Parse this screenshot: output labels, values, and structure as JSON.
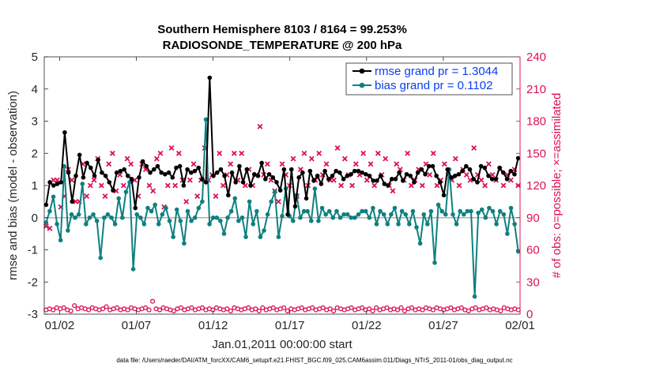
{
  "chart_data": {
    "type": "line",
    "title_line1": "Southern Hemisphere 8103 / 8164 = 99.253%",
    "title_line2": "RADIOSONDE_TEMPERATURE @ 200 hPa",
    "ylabel_left": "rmse and bias (model - observation)",
    "ylabel_right": "# of obs: o=possible; ×=assimilated",
    "xlabel": "Jan.01,2011 00:00:00 start",
    "footnote": "data file: /Users/raeder/DAI/ATM_forcXX/CAM6_setup/f.e21.FHIST_BGC.f09_025.CAM6assim.011/Diags_NTrS_2011-01/obs_diag_output.nc",
    "x_range_days": [
      0,
      31
    ],
    "ylim_left": [
      -3,
      5
    ],
    "ylim_right": [
      0,
      240
    ],
    "x_ticks": [
      {
        "day": 1,
        "label": "01/02"
      },
      {
        "day": 6,
        "label": "01/07"
      },
      {
        "day": 11,
        "label": "01/12"
      },
      {
        "day": 16,
        "label": "01/17"
      },
      {
        "day": 21,
        "label": "01/22"
      },
      {
        "day": 26,
        "label": "01/27"
      },
      {
        "day": 31,
        "label": "02/01"
      }
    ],
    "y_ticks_left": [
      -3,
      -2,
      -1,
      0,
      1,
      2,
      3,
      4,
      5
    ],
    "y_ticks_right": [
      0,
      30,
      60,
      90,
      120,
      150,
      180,
      210,
      240
    ],
    "colors": {
      "rmse": "#000000",
      "bias": "#0f8080",
      "obs": "#dc0f56",
      "zero_line": "#b0b0b0",
      "legend_text": "#0a3df0"
    },
    "series": [
      {
        "name": "rmse grand pr = 1.3044",
        "axis": "left",
        "values": [
          0.4,
          1.1,
          1.0,
          1.05,
          1.1,
          2.65,
          1.4,
          0.5,
          1.3,
          1.95,
          1.25,
          1.7,
          1.55,
          1.3,
          1.8,
          1.4,
          1.3,
          1.1,
          0.85,
          1.4,
          1.45,
          1.5,
          1.3,
          1.2,
          0.3,
          1.25,
          1.75,
          1.6,
          1.4,
          1.5,
          1.6,
          1.4,
          1.35,
          1.4,
          1.25,
          1.55,
          1.6,
          1.0,
          1.5,
          1.4,
          1.45,
          1.55,
          1.2,
          1.1,
          4.35,
          1.3,
          1.4,
          1.5,
          1.3,
          0.7,
          1.4,
          1.1,
          1.6,
          1.1,
          1.5,
          1.0,
          1.35,
          1.3,
          1.7,
          1.2,
          1.35,
          1.25,
          1.1,
          0.85,
          1.5,
          0.1,
          1.5,
          0.35,
          1.25,
          1.4,
          0.6,
          1.45,
          1.15,
          1.3,
          1.05,
          1.45,
          1.2,
          1.3,
          1.45,
          1.4,
          1.2,
          1.3,
          1.35,
          1.45,
          1.45,
          1.4,
          1.35,
          1.3,
          1.15,
          1.15,
          1.3,
          1.05,
          1.0,
          1.2,
          1.2,
          1.4,
          1.15,
          1.35,
          1.3,
          1.1,
          1.4,
          1.5,
          1.35,
          1.6,
          1.6,
          1.3,
          1.1,
          0.7,
          1.5,
          1.25,
          1.3,
          1.35,
          1.45,
          1.6,
          1.5,
          1.2,
          1.1,
          1.6,
          1.55,
          1.3,
          1.2,
          1.2,
          1.55,
          1.4,
          1.2,
          1.45,
          1.35,
          1.85
        ]
      },
      {
        "name": "bias grand pr = 0.1102",
        "axis": "left",
        "values": [
          -0.15,
          0.2,
          0.65,
          -0.2,
          -0.7,
          1.6,
          -0.4,
          0.1,
          0.0,
          0.1,
          1.05,
          -0.2,
          0.0,
          0.1,
          -0.1,
          -1.25,
          0.0,
          0.1,
          0.0,
          -0.2,
          0.6,
          0.0,
          0.8,
          1.1,
          -1.6,
          0.1,
          0.0,
          -0.2,
          0.3,
          0.2,
          0.4,
          -0.2,
          0.1,
          0.3,
          -0.1,
          -0.6,
          0.25,
          -0.1,
          -0.8,
          0.2,
          -0.1,
          0.0,
          0.3,
          0.5,
          3.05,
          -0.2,
          0.0,
          0.0,
          -0.1,
          -0.5,
          0.0,
          0.2,
          0.6,
          -0.1,
          0.0,
          -0.6,
          0.5,
          -0.2,
          0.2,
          -0.6,
          -0.4,
          0.1,
          0.5,
          0.8,
          -0.6,
          0.05,
          0.9,
          0.05,
          -0.1,
          0.7,
          0.0,
          0.2,
          0.2,
          -0.1,
          0.9,
          -0.1,
          0.3,
          0.1,
          0.2,
          0.0,
          0.2,
          0.0,
          0.1,
          0.1,
          0.0,
          0.0,
          0.1,
          0.2,
          0.2,
          0.0,
          0.3,
          -0.2,
          0.2,
          0.1,
          -0.2,
          0.1,
          0.3,
          -0.2,
          0.2,
          0.1,
          -0.2,
          0.2,
          -0.3,
          -0.8,
          0.1,
          -0.2,
          0.2,
          -1.4,
          0.4,
          0.2,
          0.1,
          1.5,
          0.1,
          -0.2,
          0.2,
          0.1,
          0.2,
          0.2,
          -2.45,
          0.15,
          0.25,
          0.0,
          0.3,
          0.2,
          -0.2,
          0.2,
          0.1,
          -0.5,
          0.3,
          -0.2,
          -1.05
        ]
      },
      {
        "name": "obs possible",
        "axis": "right",
        "marker": "o",
        "values": [
          4,
          5,
          4,
          6,
          5,
          6,
          4,
          3,
          8,
          5,
          6,
          5,
          4,
          6,
          5,
          4,
          5,
          7,
          4,
          5,
          6,
          4,
          5,
          4,
          6,
          5,
          4,
          5,
          6,
          4,
          12,
          5,
          4,
          6,
          5,
          4,
          3,
          5,
          6,
          4,
          5,
          6,
          4,
          5,
          6,
          4,
          5,
          4,
          6,
          5,
          4,
          5,
          3,
          6,
          5,
          4,
          5,
          6,
          4,
          5,
          3,
          6,
          4,
          5,
          6,
          4,
          5,
          6,
          3,
          5,
          4,
          5,
          6,
          4,
          5,
          6,
          4,
          5,
          6,
          4,
          5,
          3,
          6,
          5,
          4,
          5,
          6,
          4,
          5,
          6,
          4,
          5,
          3,
          6,
          4,
          5,
          6,
          4,
          5,
          4,
          6,
          3,
          5,
          6,
          4,
          5,
          4,
          6,
          5,
          4,
          6,
          5,
          4,
          5,
          6,
          4,
          5,
          6,
          4,
          3,
          5,
          6,
          4,
          5,
          6,
          4,
          5,
          4,
          3,
          6,
          5,
          4,
          5,
          4
        ]
      },
      {
        "name": "obs assimilated",
        "axis": "right",
        "marker": "x",
        "values": [
          82,
          80,
          125,
          125,
          100,
          110,
          135,
          125,
          105,
          105,
          140,
          110,
          120,
          125,
          145,
          120,
          110,
          140,
          150,
          115,
          130,
          120,
          145,
          140,
          125,
          110,
          140,
          135,
          120,
          115,
          145,
          150,
          100,
          120,
          155,
          120,
          150,
          125,
          105,
          125,
          140,
          110,
          125,
          155,
          125,
          130,
          110,
          150,
          120,
          130,
          140,
          150,
          125,
          150,
          120,
          135,
          120,
          130,
          175,
          130,
          140,
          125,
          115,
          105,
          140,
          130,
          120,
          145,
          110,
          135,
          150,
          120,
          145,
          125,
          150,
          130,
          140,
          125,
          125,
          155,
          120,
          145,
          130,
          120,
          140,
          130,
          150,
          125,
          140,
          120,
          150,
          130,
          145,
          120,
          115,
          140,
          135,
          125,
          150,
          120,
          125,
          135,
          120,
          140,
          130,
          150,
          120,
          125,
          140,
          130,
          125,
          145,
          120,
          135,
          130,
          125,
          155,
          130,
          125,
          120,
          140,
          130,
          125,
          135,
          120,
          130,
          125,
          135,
          120
        ]
      }
    ],
    "legend": {
      "position": "top-right"
    }
  }
}
